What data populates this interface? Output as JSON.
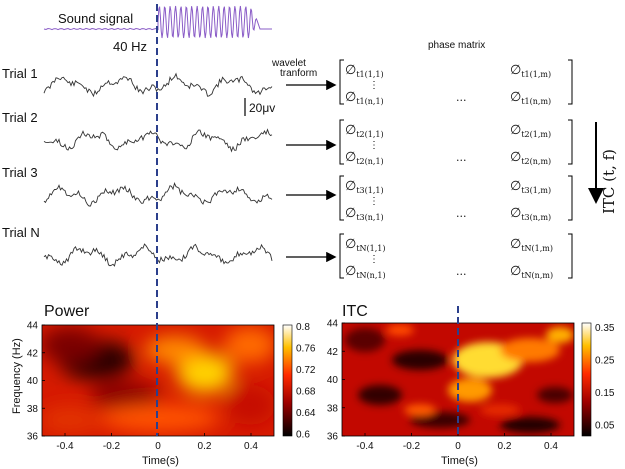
{
  "sound": {
    "label": "Sound signal",
    "freq_label": "40 Hz",
    "color": "#8a5cc7"
  },
  "trials": [
    {
      "label": "Trial 1",
      "id": "t1"
    },
    {
      "label": "Trial 2",
      "id": "t2"
    },
    {
      "label": "Trial 3",
      "id": "t3"
    },
    {
      "label": "Trial N",
      "id": "tN"
    }
  ],
  "scale_bar": {
    "label": "20μv"
  },
  "wavelet": {
    "line1": "wavelet",
    "line2": "tranform"
  },
  "phase_matrix": {
    "title": "phase matrix",
    "dots_v": "⋮",
    "dots_h": "...",
    "symbol": "∅"
  },
  "itc_axis_label": "ITC (t, f)",
  "panels": {
    "power": {
      "title": "Power",
      "ylabel": "Frequency (Hz)",
      "xlabel": "Time(s)",
      "colorbar_ticks": [
        "0.8",
        "0.76",
        "0.72",
        "0.68",
        "0.64",
        "0.6"
      ]
    },
    "itc": {
      "title": "ITC",
      "xlabel": "Time(s)",
      "colorbar_ticks": [
        "0.35",
        "0.25",
        "0.15",
        "0.05"
      ]
    }
  },
  "axes": {
    "y_ticks": [
      "44",
      "42",
      "40",
      "38",
      "36"
    ],
    "x_ticks": [
      "-0.4",
      "-0.2",
      "0",
      "0.2",
      "0.4"
    ]
  },
  "colors": {
    "dashed_line": "#2b3f8c",
    "eeg": "#333333"
  }
}
